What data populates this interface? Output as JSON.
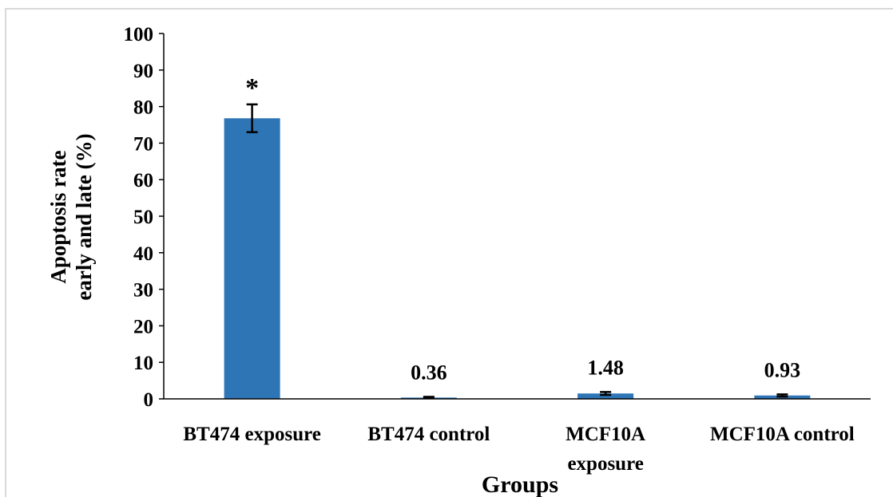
{
  "chart_data": {
    "type": "bar",
    "categories": [
      "BT474 exposure",
      "BT474 control",
      "MCF10A exposure",
      "MCF10A control"
    ],
    "category_lines": [
      [
        "BT474 exposure"
      ],
      [
        "BT474 control"
      ],
      [
        "MCF10A",
        "exposure"
      ],
      [
        "MCF10A control"
      ]
    ],
    "values": [
      76.8,
      0.36,
      1.48,
      0.93
    ],
    "errors": [
      3.8,
      0.2,
      0.4,
      0.3
    ],
    "data_labels": [
      "*",
      "0.36",
      "1.48",
      "0.93"
    ],
    "title": "",
    "xlabel": "Groups",
    "ylabel_lines": [
      "Apoptosis rate",
      "early and late (%)"
    ],
    "ylim": [
      0,
      100
    ],
    "yticks": [
      0,
      10,
      20,
      30,
      40,
      50,
      60,
      70,
      80,
      90,
      100
    ],
    "grid": false,
    "legend": "none",
    "bar_color": "#2e75b6",
    "error_color": "#000000",
    "axis_color": "#000000"
  }
}
